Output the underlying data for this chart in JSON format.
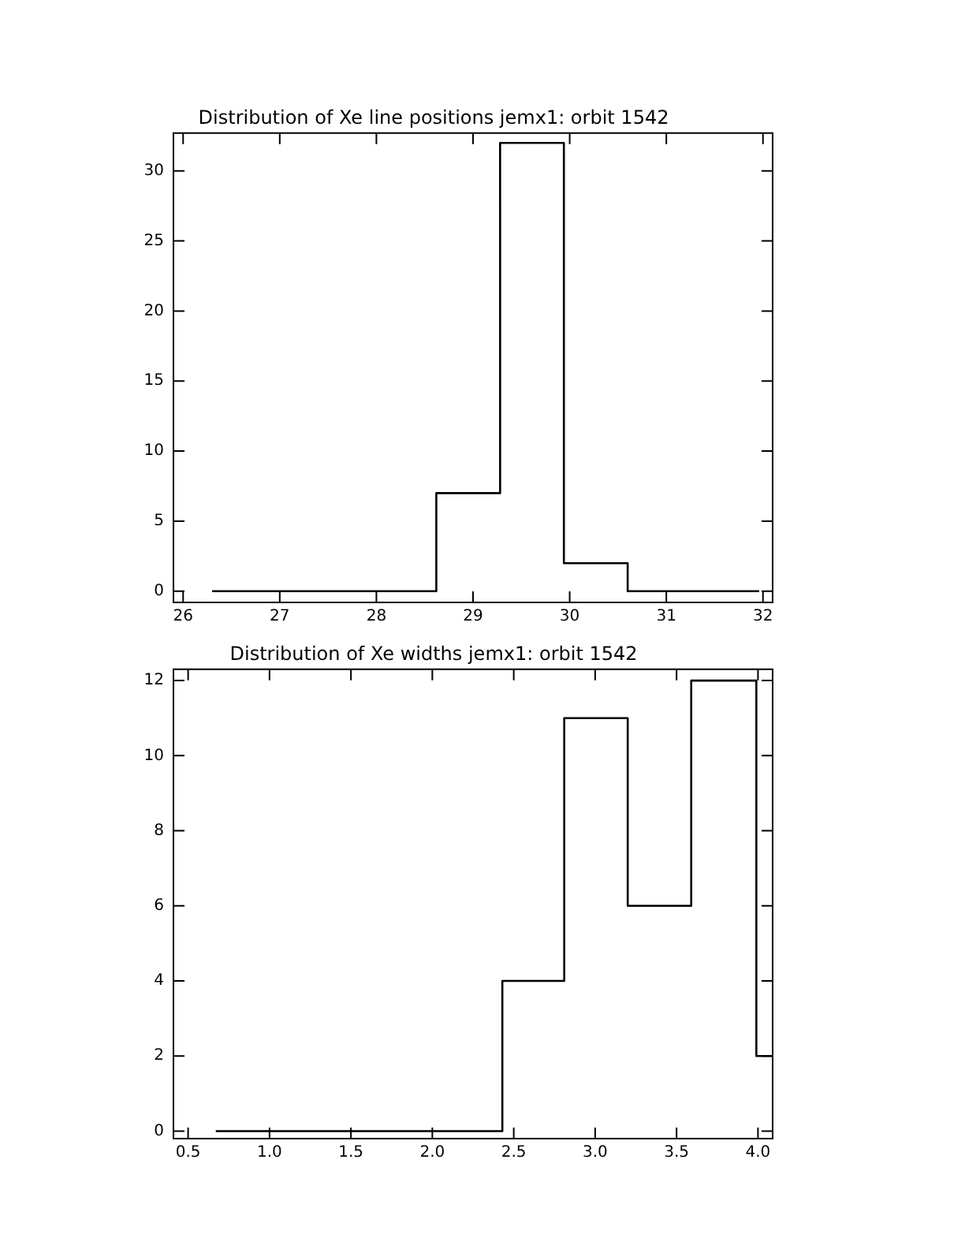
{
  "chart_data": [
    {
      "type": "histogram",
      "title": "Distribution of Xe line positions jemx1: orbit 1542",
      "bins": [
        26.3,
        28.62,
        29.28,
        29.94,
        30.6,
        31.96
      ],
      "values": [
        0,
        7,
        32,
        2,
        0
      ],
      "color": "#000000",
      "xlim": [
        25.9,
        32.1
      ],
      "xticks": [
        26,
        27,
        28,
        29,
        30,
        31,
        32
      ],
      "ylim": [
        -0.8,
        32.7
      ],
      "yticks": [
        0,
        5,
        10,
        15,
        20,
        25,
        30
      ],
      "grid": false,
      "legend": false
    },
    {
      "type": "histogram",
      "title": "Distribution of Xe widths jemx1: orbit 1542",
      "bins": [
        0.67,
        2.43,
        2.81,
        3.2,
        3.59,
        3.99,
        4.09
      ],
      "values": [
        0,
        4,
        11,
        6,
        12,
        2
      ],
      "color": "#000000",
      "xlim": [
        0.41,
        4.09
      ],
      "xticks": [
        0.5,
        {
          "value": 1,
          "label": "1.0"
        },
        1.5,
        {
          "value": 2,
          "label": "2.0"
        },
        2.5,
        {
          "value": 3,
          "label": "3.0"
        },
        3.5,
        {
          "value": 4,
          "label": "4.0"
        }
      ],
      "ylim": [
        -0.2,
        12.3
      ],
      "yticks": [
        0,
        2,
        4,
        6,
        8,
        10,
        12
      ],
      "grid": false,
      "legend": false
    }
  ]
}
